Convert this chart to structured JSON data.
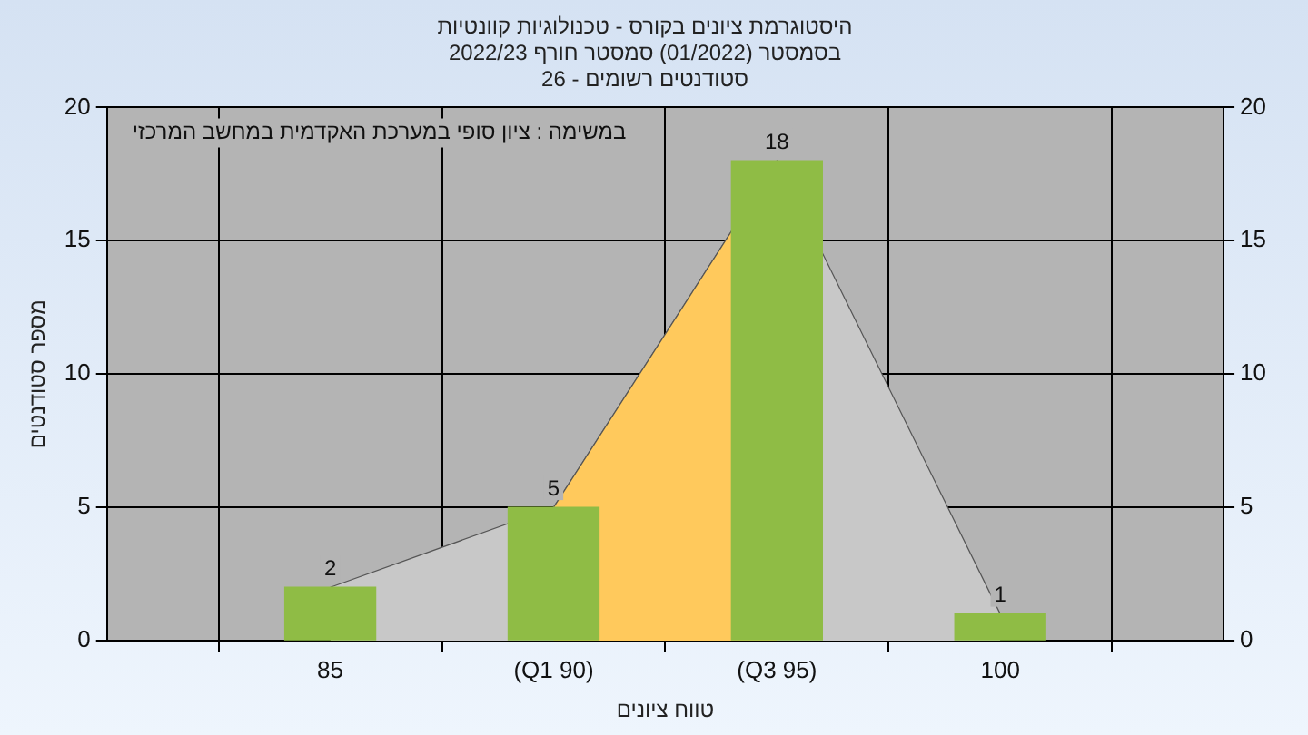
{
  "chart_data": {
    "type": "bar",
    "title": "היסטוגרמת ציונים בקורס - טכנולוגיות קוונטיות",
    "subtitle": "בסמסטר (01/2022) סמסטר חורף 2022/23\nסטודנטים רשומים - 26",
    "xlabel": "טווח ציונים",
    "ylabel": "מספר סטודנטים",
    "annotations": [
      "במשימה : ציון סופי במערכת האקדמית במחשב המרכזי"
    ],
    "categories": [
      "85",
      "(Q1 90)",
      "(Q3 95)",
      "100"
    ],
    "series": [
      {
        "type": "area",
        "color": "#c8c8c8",
        "values": [
          2,
          5,
          18,
          1
        ]
      },
      {
        "type": "area",
        "color": "#ffc95c",
        "values": [
          null,
          5,
          18,
          null
        ]
      },
      {
        "color": "#8fbc45",
        "values": [
          2,
          5,
          18,
          1
        ],
        "value_labels": [
          "2",
          "5",
          "18",
          "1"
        ]
      }
    ],
    "ylim": [
      0,
      20
    ],
    "yticks": [
      0,
      5,
      10,
      15,
      20
    ],
    "y2lim": [
      0,
      20
    ],
    "y2ticks": [
      0,
      5,
      10,
      15,
      20
    ],
    "grid": true,
    "legend": false
  }
}
